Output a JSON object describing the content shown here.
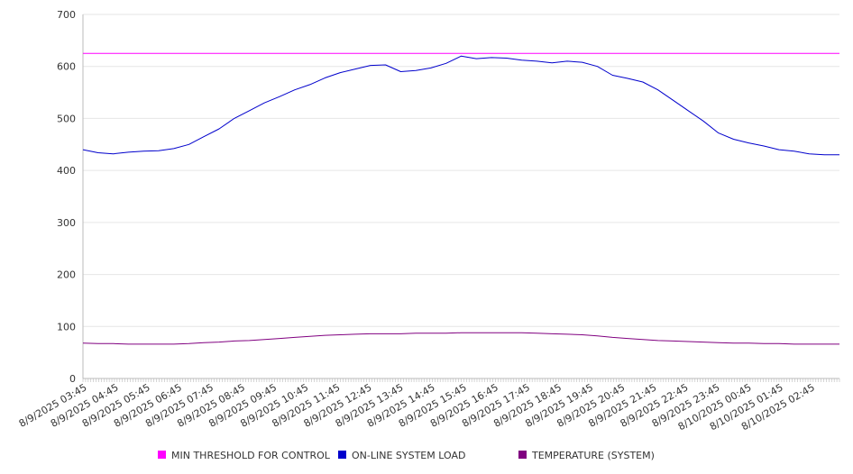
{
  "chart_data": {
    "type": "line",
    "title": "",
    "xlabel": "",
    "ylabel": "",
    "ylim": [
      0,
      700
    ],
    "yticks": [
      0,
      100,
      200,
      300,
      400,
      500,
      600,
      700
    ],
    "x_tick_labels": [
      "8/9/2025 03:45",
      "8/9/2025 04:45",
      "8/9/2025 05:45",
      "8/9/2025 06:45",
      "8/9/2025 07:45",
      "8/9/2025 08:45",
      "8/9/2025 09:45",
      "8/9/2025 10:45",
      "8/9/2025 11:45",
      "8/9/2025 12:45",
      "8/9/2025 13:45",
      "8/9/2025 14:45",
      "8/9/2025 15:45",
      "8/9/2025 16:45",
      "8/9/2025 17:45",
      "8/9/2025 18:45",
      "8/9/2025 19:45",
      "8/9/2025 20:45",
      "8/9/2025 21:45",
      "8/9/2025 22:45",
      "8/9/2025 23:45",
      "8/10/2025 00:45",
      "8/10/2025 01:45",
      "8/10/2025 02:45"
    ],
    "x": [
      "8/9/2025 03:45",
      "8/9/2025 04:15",
      "8/9/2025 04:45",
      "8/9/2025 05:15",
      "8/9/2025 05:45",
      "8/9/2025 06:15",
      "8/9/2025 06:45",
      "8/9/2025 07:15",
      "8/9/2025 07:45",
      "8/9/2025 08:15",
      "8/9/2025 08:45",
      "8/9/2025 09:15",
      "8/9/2025 09:45",
      "8/9/2025 10:15",
      "8/9/2025 10:45",
      "8/9/2025 11:15",
      "8/9/2025 11:45",
      "8/9/2025 12:15",
      "8/9/2025 12:45",
      "8/9/2025 13:15",
      "8/9/2025 13:45",
      "8/9/2025 14:00",
      "8/9/2025 14:15",
      "8/9/2025 14:45",
      "8/9/2025 15:15",
      "8/9/2025 15:45",
      "8/9/2025 16:00",
      "8/9/2025 16:15",
      "8/9/2025 16:45",
      "8/9/2025 17:15",
      "8/9/2025 17:45",
      "8/9/2025 18:15",
      "8/9/2025 18:45",
      "8/9/2025 19:15",
      "8/9/2025 19:45",
      "8/9/2025 20:15",
      "8/9/2025 20:45",
      "8/9/2025 21:15",
      "8/9/2025 21:45",
      "8/9/2025 22:15",
      "8/9/2025 22:45",
      "8/9/2025 23:15",
      "8/9/2025 23:45",
      "8/10/2025 00:15",
      "8/10/2025 00:45",
      "8/10/2025 01:15",
      "8/10/2025 01:45",
      "8/10/2025 02:15",
      "8/10/2025 02:45",
      "8/10/2025 03:15",
      "8/10/2025 03:30"
    ],
    "series": [
      {
        "name": "MIN THRESHOLD FOR CONTROL",
        "color": "#ff00ff",
        "values": [
          625,
          625,
          625,
          625,
          625,
          625,
          625,
          625,
          625,
          625,
          625,
          625,
          625,
          625,
          625,
          625,
          625,
          625,
          625,
          625,
          625,
          625,
          625,
          625,
          625,
          625,
          625,
          625,
          625,
          625,
          625,
          625,
          625,
          625,
          625,
          625,
          625,
          625,
          625,
          625,
          625,
          625,
          625,
          625,
          625,
          625,
          625,
          625,
          625,
          625,
          625
        ]
      },
      {
        "name": "ON-LINE SYSTEM LOAD",
        "color": "#0000cc",
        "values": [
          440,
          434,
          432,
          435,
          437,
          438,
          442,
          450,
          465,
          480,
          500,
          515,
          530,
          542,
          555,
          565,
          578,
          588,
          595,
          602,
          603,
          590,
          592,
          597,
          606,
          620,
          615,
          617,
          616,
          612,
          610,
          607,
          610,
          608,
          600,
          583,
          577,
          570,
          555,
          535,
          515,
          495,
          472,
          460,
          453,
          447,
          440,
          437,
          432,
          430,
          430
        ]
      },
      {
        "name": "TEMPERATURE (SYSTEM)",
        "color": "#800080",
        "values": [
          68,
          67,
          67,
          66,
          66,
          66,
          66,
          67,
          69,
          70,
          72,
          73,
          75,
          77,
          79,
          81,
          83,
          84,
          85,
          86,
          86,
          86,
          87,
          87,
          87,
          88,
          88,
          88,
          88,
          88,
          87,
          86,
          85,
          84,
          82,
          79,
          77,
          75,
          73,
          72,
          71,
          70,
          69,
          68,
          68,
          67,
          67,
          66,
          66,
          66,
          66
        ]
      }
    ],
    "grid": true,
    "legend_position": "bottom"
  }
}
